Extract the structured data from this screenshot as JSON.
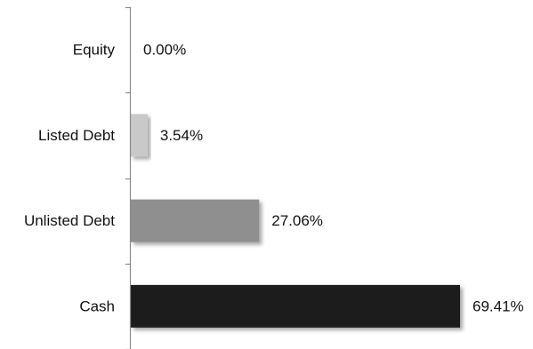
{
  "chart_data": {
    "type": "bar",
    "orientation": "horizontal",
    "categories": [
      "Equity",
      "Listed Debt",
      "Unlisted Debt",
      "Cash"
    ],
    "values": [
      0.0,
      3.54,
      27.06,
      69.41
    ],
    "value_labels": [
      "0.00%",
      "3.54%",
      "27.06%",
      "69.41%"
    ],
    "bar_colors": [
      "#e6e6e6",
      "#c9c9c9",
      "#8f8f8f",
      "#1f1f1f"
    ],
    "title": "",
    "xlabel": "",
    "ylabel": "",
    "xlim": [
      0,
      69.41
    ],
    "grid": false,
    "legend": "none"
  }
}
